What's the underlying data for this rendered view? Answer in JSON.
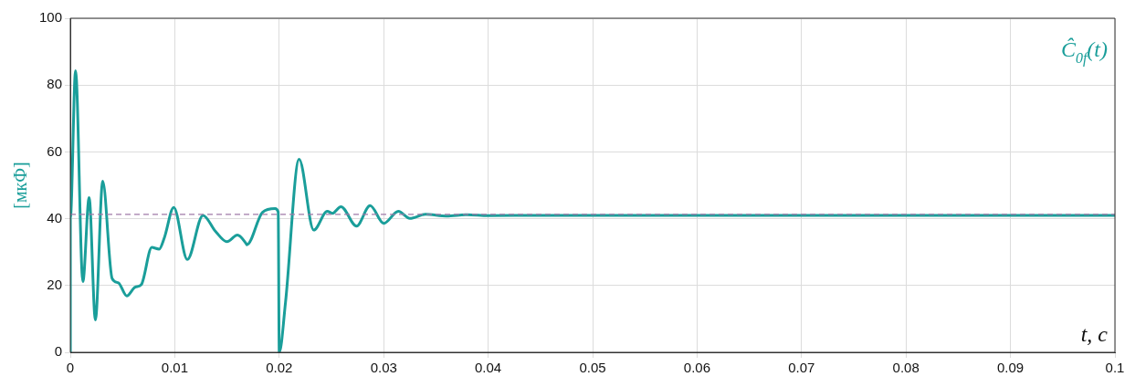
{
  "chart_data": {
    "type": "line",
    "xlabel": "t, c",
    "ylabel": "[мкФ]",
    "xlim": [
      0,
      0.1
    ],
    "xticks": [
      0,
      0.01,
      0.02,
      0.03,
      0.04,
      0.05,
      0.06,
      0.07,
      0.08,
      0.09,
      0.1
    ],
    "ylim": [
      0,
      100
    ],
    "yticks": [
      0,
      20,
      40,
      60,
      80,
      100
    ],
    "grid": true,
    "legend": false,
    "marker": "none",
    "line_style": "solid",
    "ref_lines": [
      {
        "axis": "y",
        "value": 41.3,
        "color": "#a07aa8",
        "line_style": "dashed"
      }
    ],
    "series": [
      {
        "name": "Ĉ$_{0f}$(t)",
        "color": "#1a9e9a",
        "x": [
          0,
          0,
          0.0005,
          0.0012,
          0.0018,
          0.0024,
          0.0031,
          0.004,
          0.0046,
          0.0054,
          0.0062,
          0.0068,
          0.0078,
          0.0085,
          0.009,
          0.0099,
          0.0112,
          0.0127,
          0.0139,
          0.015,
          0.016,
          0.0168,
          0.0169,
          0.0184,
          0.0196,
          0.0199,
          0.02,
          0.0206,
          0.0219,
          0.0233,
          0.0246,
          0.0251,
          0.0259,
          0.0274,
          0.0287,
          0.03,
          0.0314,
          0.0325,
          0.034,
          0.036,
          0.038,
          0.04,
          0.045,
          0.1
        ],
        "values": [
          0,
          40,
          84.3,
          21.2,
          46.3,
          9.7,
          51.2,
          22.1,
          20.8,
          16.9,
          19.5,
          20.3,
          31.4,
          30.9,
          34.3,
          43.4,
          27.8,
          41,
          36.2,
          33.1,
          35.1,
          32.7,
          32.2,
          41.9,
          43,
          42,
          0,
          15,
          57.8,
          36.6,
          42.2,
          41.6,
          43.6,
          37.8,
          43.9,
          38.6,
          42.2,
          40.1,
          41.3,
          40.8,
          41.2,
          40.9,
          41,
          41
        ]
      }
    ]
  }
}
